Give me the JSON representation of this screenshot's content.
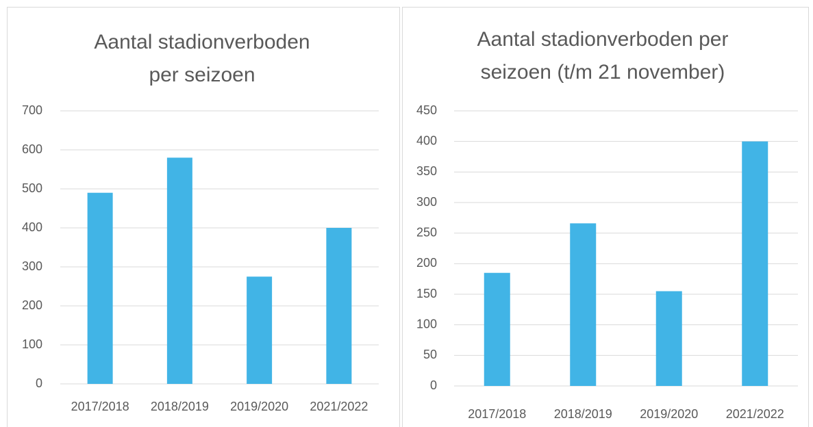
{
  "chart_data": [
    {
      "type": "bar",
      "title": "Aantal stadionverboden per seizoen",
      "categories": [
        "2017/2018",
        "2018/2019",
        "2019/2020",
        "2021/2022"
      ],
      "values": [
        490,
        580,
        275,
        400
      ],
      "color": "#41b4e6",
      "ylim": [
        0,
        700
      ],
      "yticks": [
        0,
        100,
        200,
        300,
        400,
        500,
        600,
        700
      ],
      "grid": true
    },
    {
      "type": "bar",
      "title": "Aantal stadionverboden per seizoen (t/m 21 november)",
      "categories": [
        "2017/2018",
        "2018/2019",
        "2019/2020",
        "2021/2022"
      ],
      "values": [
        185,
        266,
        155,
        400
      ],
      "color": "#41b4e6",
      "ylim": [
        0,
        450
      ],
      "yticks": [
        0,
        50,
        100,
        150,
        200,
        250,
        300,
        350,
        400,
        450
      ],
      "grid": true
    }
  ]
}
